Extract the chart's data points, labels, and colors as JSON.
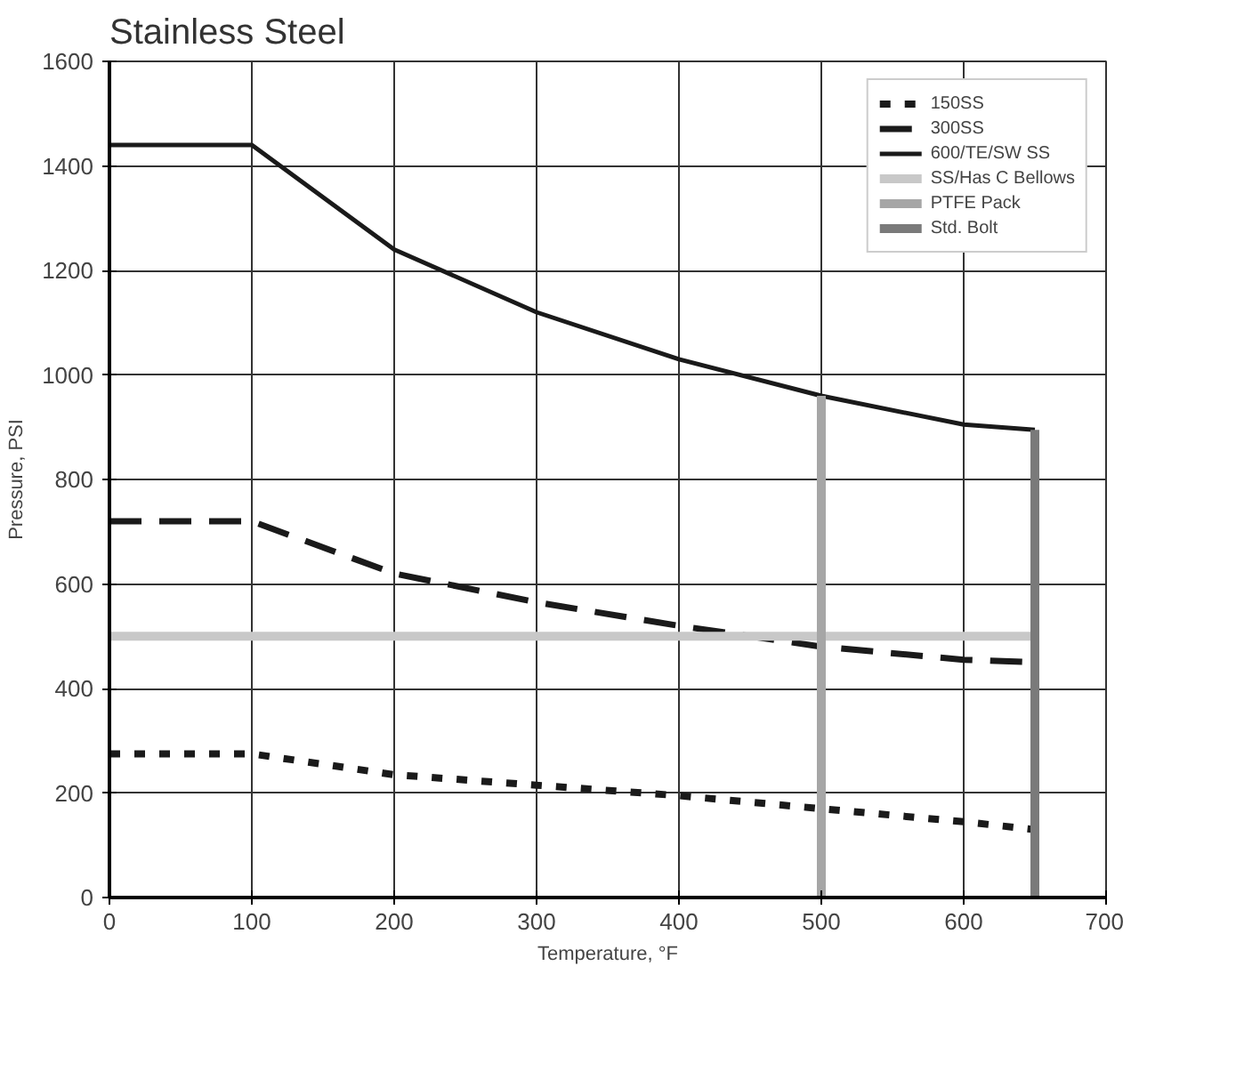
{
  "chart_data": {
    "type": "line",
    "title": "Stainless Steel",
    "xlabel": "Temperature, °F",
    "ylabel": "Pressure, PSI",
    "xlim": [
      0,
      700
    ],
    "ylim": [
      0,
      1600
    ],
    "xticks": [
      0,
      100,
      200,
      300,
      400,
      500,
      600,
      700
    ],
    "yticks": [
      0,
      200,
      400,
      600,
      800,
      1000,
      1200,
      1400,
      1600
    ],
    "grid": true,
    "legend": "top right",
    "series": [
      {
        "name": "150SS",
        "color": "#1a1a1a",
        "line_style": "dotted",
        "x": [
          0,
          100,
          200,
          300,
          400,
          500,
          600,
          650
        ],
        "values": [
          275,
          275,
          235,
          215,
          195,
          170,
          145,
          130
        ]
      },
      {
        "name": "300SS",
        "color": "#1a1a1a",
        "line_style": "dashed",
        "x": [
          0,
          100,
          200,
          300,
          400,
          500,
          600,
          650
        ],
        "values": [
          720,
          720,
          620,
          565,
          520,
          480,
          455,
          450
        ]
      },
      {
        "name": "600/TE/SW SS",
        "color": "#1a1a1a",
        "line_style": "solid",
        "x": [
          0,
          100,
          200,
          300,
          400,
          500,
          600,
          650
        ],
        "values": [
          1440,
          1440,
          1240,
          1120,
          1030,
          960,
          905,
          895
        ]
      },
      {
        "name": "SS/Has C Bellows",
        "color": "#c8c8c8",
        "line_style": "solid",
        "x": [
          0,
          650
        ],
        "values": [
          500,
          500
        ]
      },
      {
        "name": "PTFE Pack",
        "color": "#a6a6a6",
        "line_style": "solid",
        "x": [
          500,
          500
        ],
        "values": [
          0,
          960
        ]
      },
      {
        "name": "Std. Bolt",
        "color": "#7a7a7a",
        "line_style": "solid",
        "x": [
          650,
          650
        ],
        "values": [
          0,
          895
        ]
      }
    ]
  }
}
